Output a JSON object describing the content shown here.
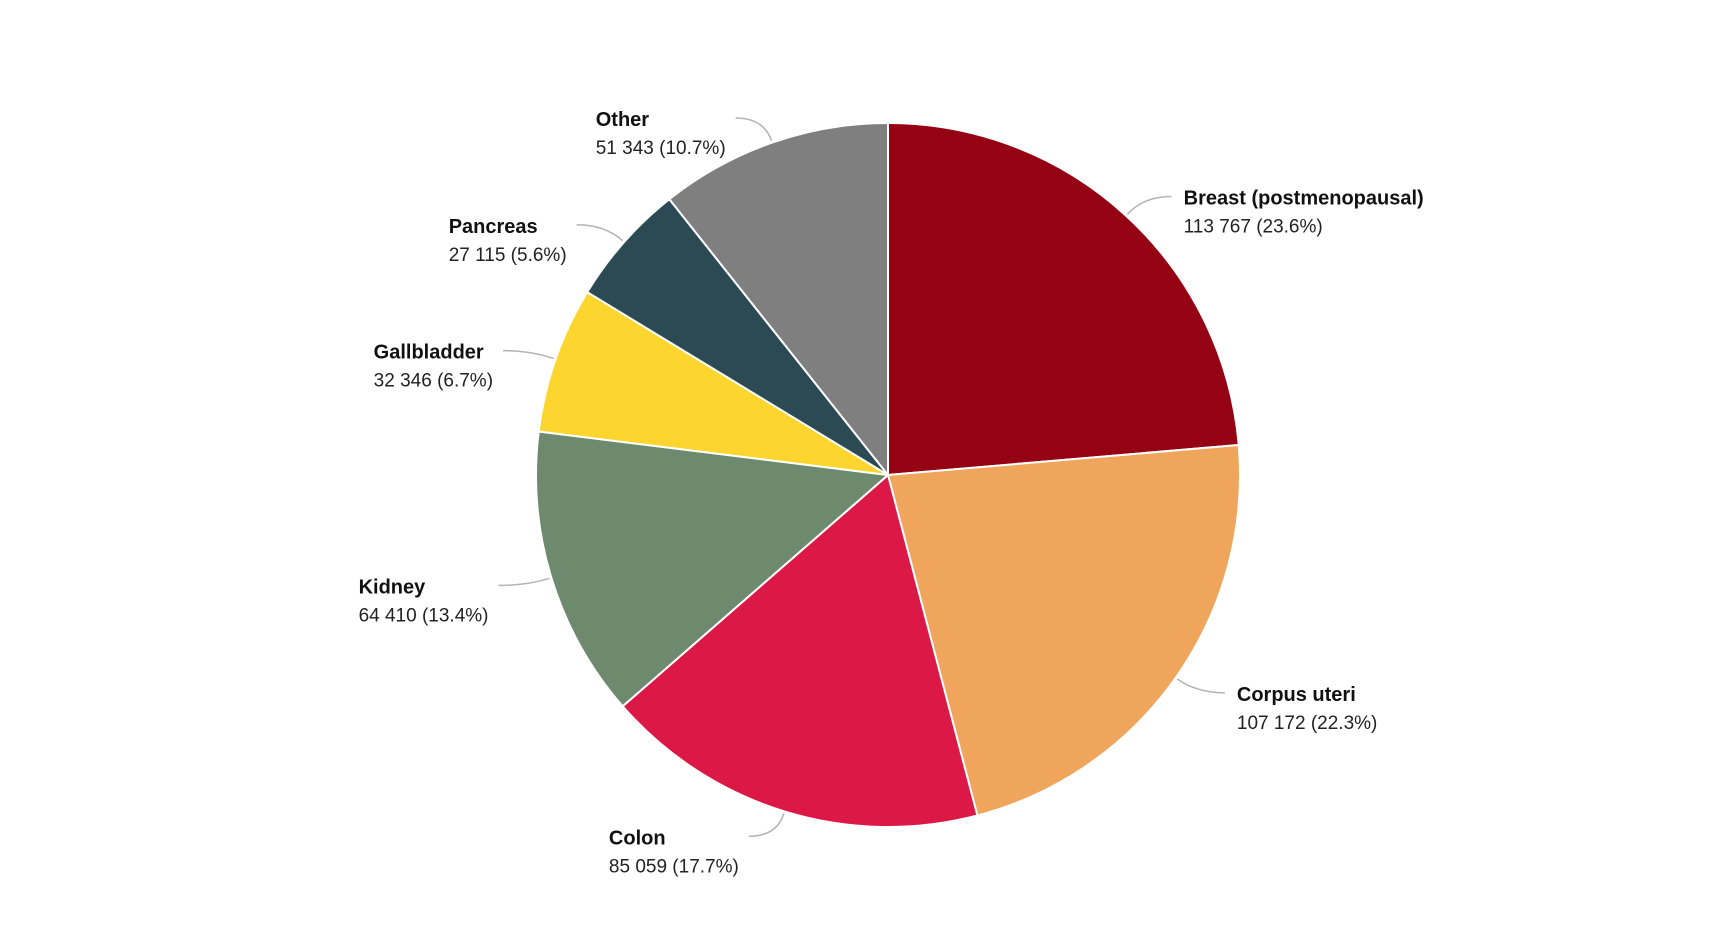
{
  "chart_data": {
    "type": "pie",
    "title": "",
    "start_angle_deg": 0,
    "direction": "clockwise",
    "slices": [
      {
        "label": "Breast (postmenopausal)",
        "value": 113767,
        "value_text": "113 767 (23.6%)",
        "percent": 23.6,
        "color": "#940214"
      },
      {
        "label": "Corpus uteri",
        "value": 107172,
        "value_text": "107 172 (22.3%)",
        "percent": 22.3,
        "color": "#F0A55C"
      },
      {
        "label": "Colon",
        "value": 85059,
        "value_text": "85 059 (17.7%)",
        "percent": 17.7,
        "color": "#DB1846"
      },
      {
        "label": "Kidney",
        "value": 64410,
        "value_text": "64 410 (13.4%)",
        "percent": 13.4,
        "color": "#6E8A6E"
      },
      {
        "label": "Gallbladder",
        "value": 32346,
        "value_text": "32 346 (6.7%)",
        "percent": 6.7,
        "color": "#FCD62F"
      },
      {
        "label": "Pancreas",
        "value": 27115,
        "value_text": "27 115 (5.6%)",
        "percent": 5.6,
        "color": "#2C4A53"
      },
      {
        "label": "Other",
        "value": 51343,
        "value_text": "51 343 (10.7%)",
        "percent": 10.7,
        "color": "#7F7F7F"
      }
    ]
  }
}
